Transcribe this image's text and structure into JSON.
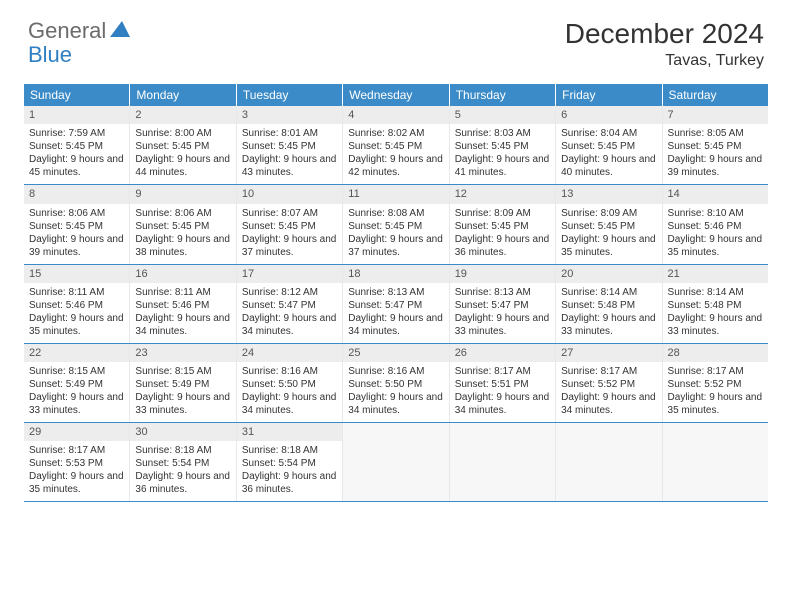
{
  "logo": {
    "general": "General",
    "blue": "Blue"
  },
  "title": "December 2024",
  "location": "Tavas, Turkey",
  "header_bg": "#3b8bc8",
  "daynum_bg": "#ededed",
  "row_border": "#3b8bc8",
  "day_headers": [
    "Sunday",
    "Monday",
    "Tuesday",
    "Wednesday",
    "Thursday",
    "Friday",
    "Saturday"
  ],
  "weeks": [
    [
      {
        "n": "1",
        "sr": "Sunrise: 7:59 AM",
        "ss": "Sunset: 5:45 PM",
        "dl": "Daylight: 9 hours and 45 minutes."
      },
      {
        "n": "2",
        "sr": "Sunrise: 8:00 AM",
        "ss": "Sunset: 5:45 PM",
        "dl": "Daylight: 9 hours and 44 minutes."
      },
      {
        "n": "3",
        "sr": "Sunrise: 8:01 AM",
        "ss": "Sunset: 5:45 PM",
        "dl": "Daylight: 9 hours and 43 minutes."
      },
      {
        "n": "4",
        "sr": "Sunrise: 8:02 AM",
        "ss": "Sunset: 5:45 PM",
        "dl": "Daylight: 9 hours and 42 minutes."
      },
      {
        "n": "5",
        "sr": "Sunrise: 8:03 AM",
        "ss": "Sunset: 5:45 PM",
        "dl": "Daylight: 9 hours and 41 minutes."
      },
      {
        "n": "6",
        "sr": "Sunrise: 8:04 AM",
        "ss": "Sunset: 5:45 PM",
        "dl": "Daylight: 9 hours and 40 minutes."
      },
      {
        "n": "7",
        "sr": "Sunrise: 8:05 AM",
        "ss": "Sunset: 5:45 PM",
        "dl": "Daylight: 9 hours and 39 minutes."
      }
    ],
    [
      {
        "n": "8",
        "sr": "Sunrise: 8:06 AM",
        "ss": "Sunset: 5:45 PM",
        "dl": "Daylight: 9 hours and 39 minutes."
      },
      {
        "n": "9",
        "sr": "Sunrise: 8:06 AM",
        "ss": "Sunset: 5:45 PM",
        "dl": "Daylight: 9 hours and 38 minutes."
      },
      {
        "n": "10",
        "sr": "Sunrise: 8:07 AM",
        "ss": "Sunset: 5:45 PM",
        "dl": "Daylight: 9 hours and 37 minutes."
      },
      {
        "n": "11",
        "sr": "Sunrise: 8:08 AM",
        "ss": "Sunset: 5:45 PM",
        "dl": "Daylight: 9 hours and 37 minutes."
      },
      {
        "n": "12",
        "sr": "Sunrise: 8:09 AM",
        "ss": "Sunset: 5:45 PM",
        "dl": "Daylight: 9 hours and 36 minutes."
      },
      {
        "n": "13",
        "sr": "Sunrise: 8:09 AM",
        "ss": "Sunset: 5:45 PM",
        "dl": "Daylight: 9 hours and 35 minutes."
      },
      {
        "n": "14",
        "sr": "Sunrise: 8:10 AM",
        "ss": "Sunset: 5:46 PM",
        "dl": "Daylight: 9 hours and 35 minutes."
      }
    ],
    [
      {
        "n": "15",
        "sr": "Sunrise: 8:11 AM",
        "ss": "Sunset: 5:46 PM",
        "dl": "Daylight: 9 hours and 35 minutes."
      },
      {
        "n": "16",
        "sr": "Sunrise: 8:11 AM",
        "ss": "Sunset: 5:46 PM",
        "dl": "Daylight: 9 hours and 34 minutes."
      },
      {
        "n": "17",
        "sr": "Sunrise: 8:12 AM",
        "ss": "Sunset: 5:47 PM",
        "dl": "Daylight: 9 hours and 34 minutes."
      },
      {
        "n": "18",
        "sr": "Sunrise: 8:13 AM",
        "ss": "Sunset: 5:47 PM",
        "dl": "Daylight: 9 hours and 34 minutes."
      },
      {
        "n": "19",
        "sr": "Sunrise: 8:13 AM",
        "ss": "Sunset: 5:47 PM",
        "dl": "Daylight: 9 hours and 33 minutes."
      },
      {
        "n": "20",
        "sr": "Sunrise: 8:14 AM",
        "ss": "Sunset: 5:48 PM",
        "dl": "Daylight: 9 hours and 33 minutes."
      },
      {
        "n": "21",
        "sr": "Sunrise: 8:14 AM",
        "ss": "Sunset: 5:48 PM",
        "dl": "Daylight: 9 hours and 33 minutes."
      }
    ],
    [
      {
        "n": "22",
        "sr": "Sunrise: 8:15 AM",
        "ss": "Sunset: 5:49 PM",
        "dl": "Daylight: 9 hours and 33 minutes."
      },
      {
        "n": "23",
        "sr": "Sunrise: 8:15 AM",
        "ss": "Sunset: 5:49 PM",
        "dl": "Daylight: 9 hours and 33 minutes."
      },
      {
        "n": "24",
        "sr": "Sunrise: 8:16 AM",
        "ss": "Sunset: 5:50 PM",
        "dl": "Daylight: 9 hours and 34 minutes."
      },
      {
        "n": "25",
        "sr": "Sunrise: 8:16 AM",
        "ss": "Sunset: 5:50 PM",
        "dl": "Daylight: 9 hours and 34 minutes."
      },
      {
        "n": "26",
        "sr": "Sunrise: 8:17 AM",
        "ss": "Sunset: 5:51 PM",
        "dl": "Daylight: 9 hours and 34 minutes."
      },
      {
        "n": "27",
        "sr": "Sunrise: 8:17 AM",
        "ss": "Sunset: 5:52 PM",
        "dl": "Daylight: 9 hours and 34 minutes."
      },
      {
        "n": "28",
        "sr": "Sunrise: 8:17 AM",
        "ss": "Sunset: 5:52 PM",
        "dl": "Daylight: 9 hours and 35 minutes."
      }
    ],
    [
      {
        "n": "29",
        "sr": "Sunrise: 8:17 AM",
        "ss": "Sunset: 5:53 PM",
        "dl": "Daylight: 9 hours and 35 minutes."
      },
      {
        "n": "30",
        "sr": "Sunrise: 8:18 AM",
        "ss": "Sunset: 5:54 PM",
        "dl": "Daylight: 9 hours and 36 minutes."
      },
      {
        "n": "31",
        "sr": "Sunrise: 8:18 AM",
        "ss": "Sunset: 5:54 PM",
        "dl": "Daylight: 9 hours and 36 minutes."
      },
      {
        "empty": true
      },
      {
        "empty": true
      },
      {
        "empty": true
      },
      {
        "empty": true
      }
    ]
  ]
}
